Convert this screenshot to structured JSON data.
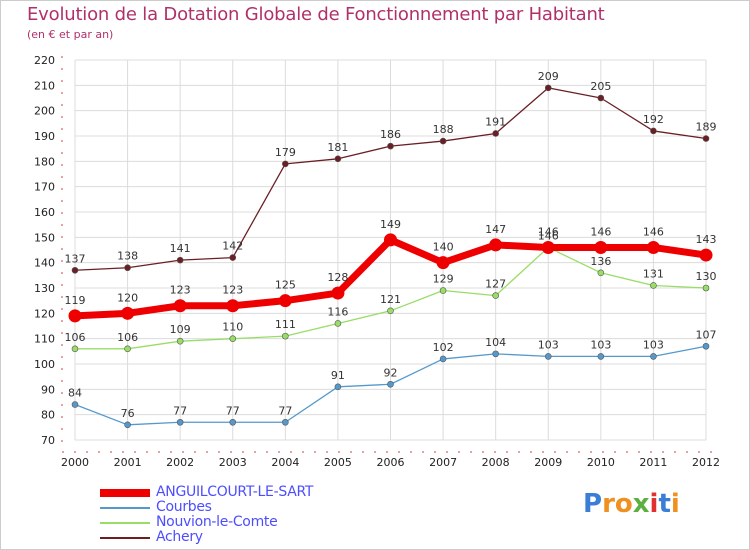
{
  "chart_data": {
    "type": "line",
    "title": "Evolution de la Dotation Globale de Fonctionnement par Habitant",
    "subtitle": "(en € et par an)",
    "x": [
      "2000",
      "2001",
      "2002",
      "2003",
      "2004",
      "2005",
      "2006",
      "2007",
      "2008",
      "2009",
      "2010",
      "2011",
      "2012"
    ],
    "ylim": [
      70,
      220
    ],
    "ytick_step": 10,
    "grid": true,
    "legend_position": "bottom-left",
    "series": [
      {
        "name": "Achery",
        "color": "#6b1f24",
        "values": [
          137,
          138,
          141,
          142,
          179,
          181,
          186,
          188,
          191,
          209,
          205,
          192,
          189
        ]
      },
      {
        "name": "Nouvion-le-Comte",
        "color": "#99dd66",
        "values": [
          106,
          106,
          109,
          110,
          111,
          116,
          121,
          129,
          127,
          146,
          136,
          131,
          130
        ]
      },
      {
        "name": "Courbes",
        "color": "#5599cc",
        "values": [
          84,
          76,
          77,
          77,
          77,
          91,
          92,
          102,
          104,
          103,
          103,
          103,
          107
        ]
      },
      {
        "name": "ANGUILCOURT-LE-SART",
        "color": "#ee0000",
        "values": [
          119,
          120,
          123,
          123,
          125,
          128,
          149,
          140,
          147,
          146,
          146,
          146,
          143
        ]
      }
    ],
    "legend_order": [
      "ANGUILCOURT-LE-SART",
      "Courbes",
      "Nouvion-le-Comte",
      "Achery"
    ]
  },
  "logo": {
    "letters": [
      "P",
      "r",
      "o",
      "x",
      "i",
      "t",
      "i"
    ],
    "colors": [
      "#3a7fd5",
      "#f09020",
      "#f09020",
      "#5bb040",
      "#e03030",
      "#3a7fd5",
      "#f09020"
    ]
  }
}
